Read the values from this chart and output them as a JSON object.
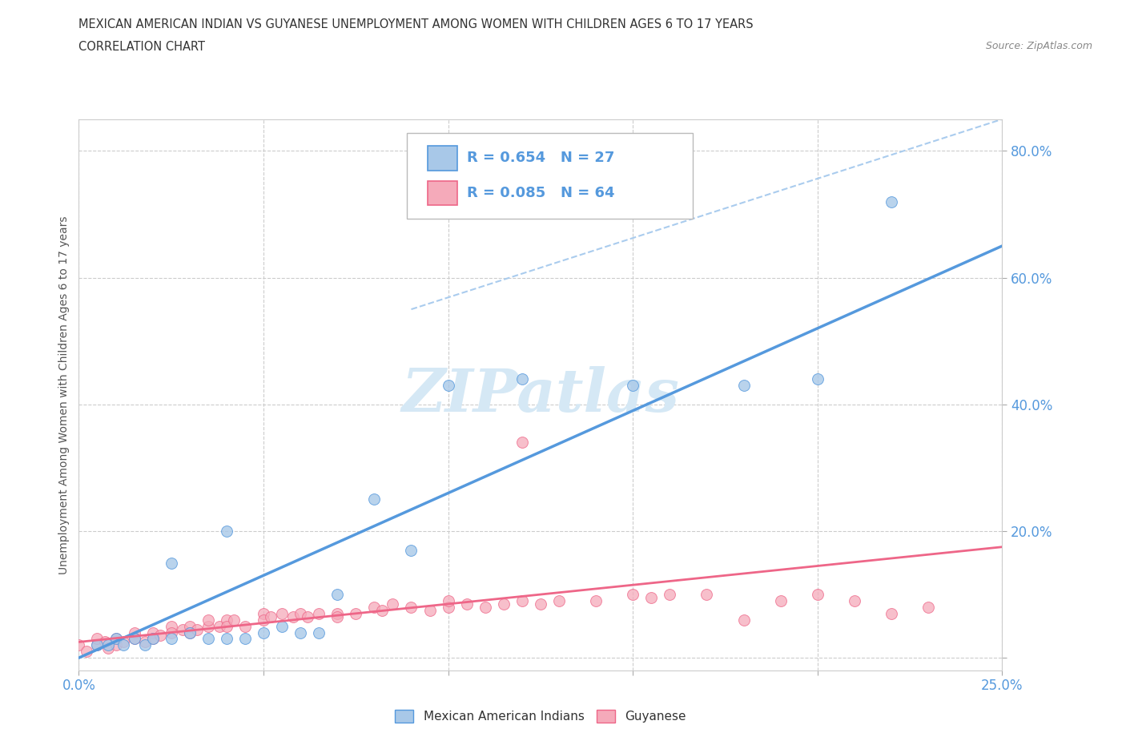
{
  "title_line1": "MEXICAN AMERICAN INDIAN VS GUYANESE UNEMPLOYMENT AMONG WOMEN WITH CHILDREN AGES 6 TO 17 YEARS",
  "title_line2": "CORRELATION CHART",
  "source": "Source: ZipAtlas.com",
  "ylabel": "Unemployment Among Women with Children Ages 6 to 17 years",
  "xlim": [
    0.0,
    0.25
  ],
  "ylim": [
    -0.02,
    0.85
  ],
  "mexican_R": 0.654,
  "mexican_N": 27,
  "guyanese_R": 0.085,
  "guyanese_N": 64,
  "mexican_color": "#a8c8e8",
  "guyanese_color": "#f5aaba",
  "mexican_line_color": "#5599dd",
  "guyanese_line_color": "#ee6688",
  "dashed_line_color": "#aaccee",
  "watermark_color": "#d5e8f5",
  "mexican_scatter_x": [
    0.005,
    0.008,
    0.01,
    0.012,
    0.015,
    0.018,
    0.02,
    0.025,
    0.025,
    0.03,
    0.035,
    0.04,
    0.04,
    0.045,
    0.05,
    0.055,
    0.06,
    0.065,
    0.07,
    0.08,
    0.09,
    0.1,
    0.12,
    0.15,
    0.18,
    0.2,
    0.22
  ],
  "mexican_scatter_y": [
    0.02,
    0.02,
    0.03,
    0.02,
    0.03,
    0.02,
    0.03,
    0.03,
    0.15,
    0.04,
    0.03,
    0.2,
    0.03,
    0.03,
    0.04,
    0.05,
    0.04,
    0.04,
    0.1,
    0.25,
    0.17,
    0.43,
    0.44,
    0.43,
    0.43,
    0.44,
    0.72
  ],
  "guyanese_scatter_x": [
    0.0,
    0.002,
    0.005,
    0.005,
    0.007,
    0.008,
    0.01,
    0.01,
    0.012,
    0.015,
    0.015,
    0.018,
    0.02,
    0.02,
    0.022,
    0.025,
    0.025,
    0.028,
    0.03,
    0.03,
    0.032,
    0.035,
    0.035,
    0.038,
    0.04,
    0.04,
    0.042,
    0.045,
    0.05,
    0.05,
    0.052,
    0.055,
    0.058,
    0.06,
    0.062,
    0.065,
    0.07,
    0.07,
    0.075,
    0.08,
    0.082,
    0.085,
    0.09,
    0.095,
    0.1,
    0.1,
    0.105,
    0.11,
    0.115,
    0.12,
    0.125,
    0.13,
    0.14,
    0.15,
    0.155,
    0.16,
    0.17,
    0.18,
    0.19,
    0.2,
    0.21,
    0.22,
    0.23,
    0.12
  ],
  "guyanese_scatter_y": [
    0.02,
    0.01,
    0.02,
    0.03,
    0.025,
    0.015,
    0.03,
    0.02,
    0.025,
    0.04,
    0.03,
    0.025,
    0.04,
    0.03,
    0.035,
    0.05,
    0.04,
    0.045,
    0.05,
    0.04,
    0.045,
    0.05,
    0.06,
    0.05,
    0.06,
    0.05,
    0.06,
    0.05,
    0.07,
    0.06,
    0.065,
    0.07,
    0.065,
    0.07,
    0.065,
    0.07,
    0.07,
    0.065,
    0.07,
    0.08,
    0.075,
    0.085,
    0.08,
    0.075,
    0.08,
    0.09,
    0.085,
    0.08,
    0.085,
    0.09,
    0.085,
    0.09,
    0.09,
    0.1,
    0.095,
    0.1,
    0.1,
    0.06,
    0.09,
    0.1,
    0.09,
    0.07,
    0.08,
    0.34
  ],
  "blue_trend_x": [
    0.0,
    0.25
  ],
  "blue_trend_y": [
    0.0,
    0.65
  ],
  "pink_trend_x": [
    0.0,
    0.25
  ],
  "pink_trend_y": [
    0.025,
    0.175
  ],
  "dash_line_x": [
    0.09,
    0.25
  ],
  "dash_line_y": [
    0.55,
    0.85
  ]
}
